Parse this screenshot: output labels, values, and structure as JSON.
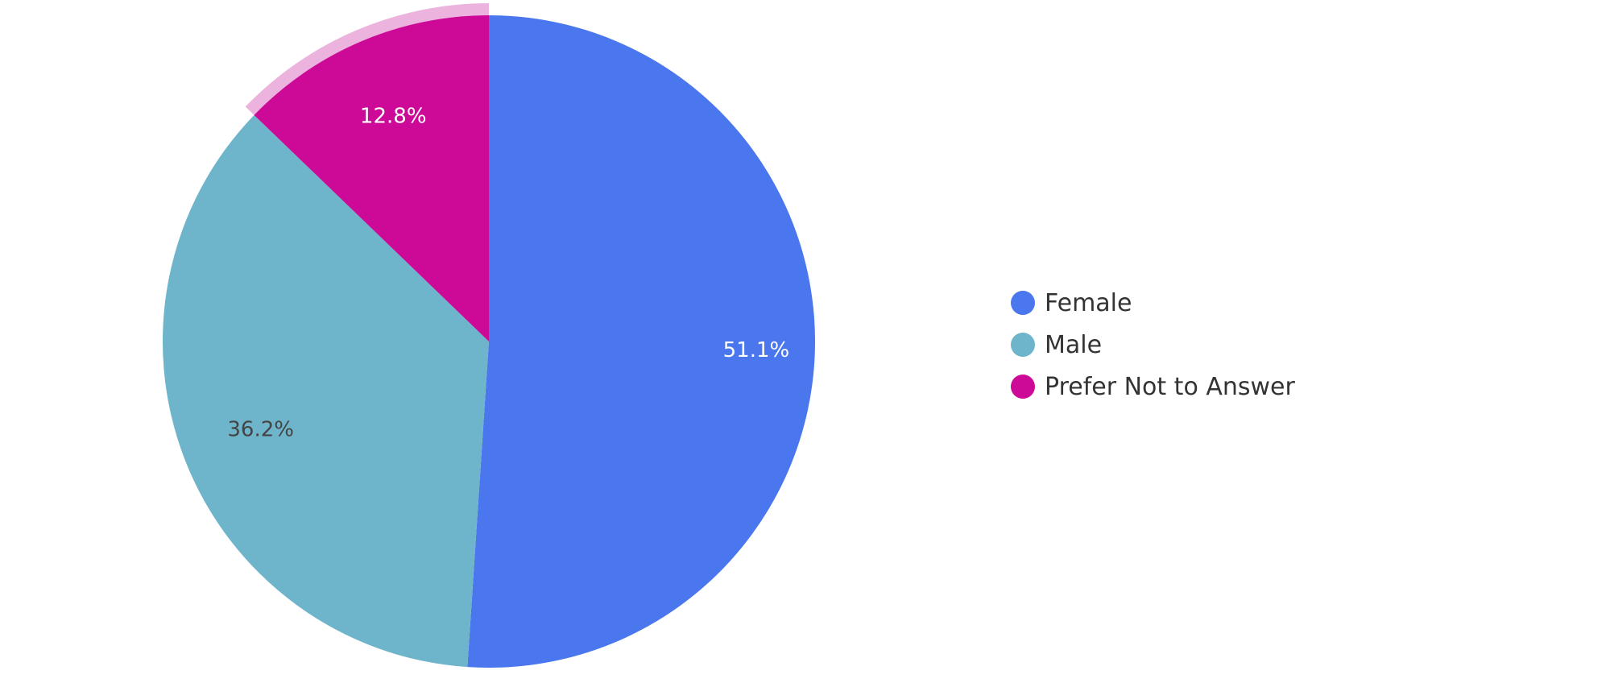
{
  "chart_data": {
    "type": "pie",
    "title": "",
    "slices": [
      {
        "label": "Female",
        "value": 51.1,
        "value_label": "51.1%",
        "color": "#4A76EE",
        "label_color": "#ffffff"
      },
      {
        "label": "Male",
        "value": 36.2,
        "value_label": "36.2%",
        "color": "#6EB4CA",
        "label_color": "#444444"
      },
      {
        "label": "Prefer Not to Answer",
        "value": 12.8,
        "value_label": "12.8%",
        "color": "#CC0A97",
        "label_color": "#ffffff",
        "highlighted": true,
        "highlight_color": "#EBB3DD"
      }
    ],
    "start_angle_deg": 0,
    "direction": "clockwise",
    "legend_position": "right"
  }
}
